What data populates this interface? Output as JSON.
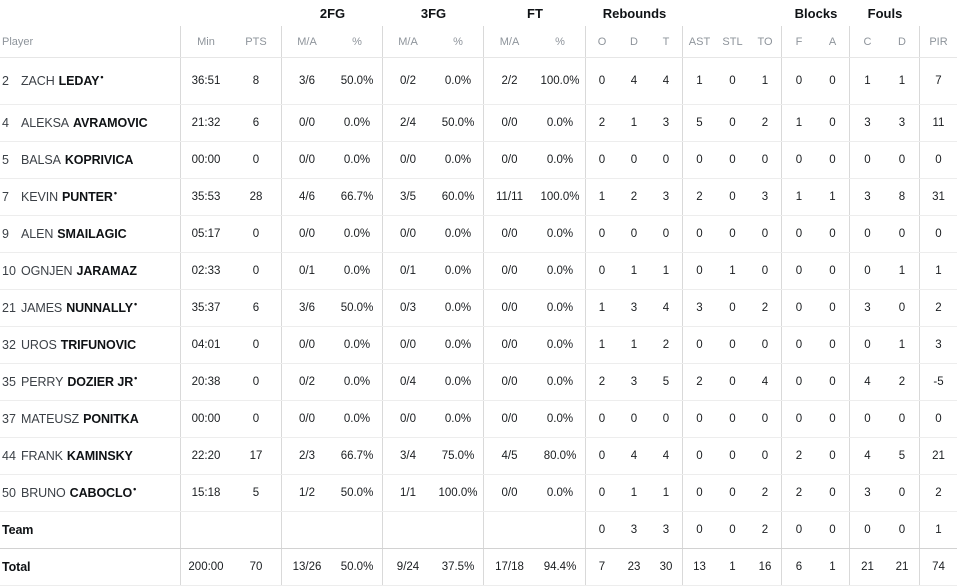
{
  "table": {
    "starter_mark": "•",
    "group_headers": [
      {
        "label": "2FG"
      },
      {
        "label": "3FG"
      },
      {
        "label": "FT"
      },
      {
        "label": "Rebounds"
      },
      {
        "label": "Blocks"
      },
      {
        "label": "Fouls"
      }
    ],
    "columns": [
      "Player",
      "Min",
      "PTS",
      "M/A",
      "%",
      "M/A",
      "%",
      "M/A",
      "%",
      "O",
      "D",
      "T",
      "AST",
      "STL",
      "TO",
      "F",
      "A",
      "C",
      "D",
      "PIR"
    ],
    "rows": [
      {
        "number": "2",
        "first": "ZACH",
        "last": "LEDAY",
        "starter": true,
        "stats": [
          "36:51",
          "8",
          "3/6",
          "50.0%",
          "0/2",
          "0.0%",
          "2/2",
          "100.0%",
          "0",
          "4",
          "4",
          "1",
          "0",
          "1",
          "0",
          "0",
          "1",
          "1",
          "7"
        ]
      },
      {
        "number": "4",
        "first": "ALEKSA",
        "last": "AVRAMOVIC",
        "starter": false,
        "stats": [
          "21:32",
          "6",
          "0/0",
          "0.0%",
          "2/4",
          "50.0%",
          "0/0",
          "0.0%",
          "2",
          "1",
          "3",
          "5",
          "0",
          "2",
          "1",
          "0",
          "3",
          "3",
          "11"
        ]
      },
      {
        "number": "5",
        "first": "BALSA",
        "last": "KOPRIVICA",
        "starter": false,
        "stats": [
          "00:00",
          "0",
          "0/0",
          "0.0%",
          "0/0",
          "0.0%",
          "0/0",
          "0.0%",
          "0",
          "0",
          "0",
          "0",
          "0",
          "0",
          "0",
          "0",
          "0",
          "0",
          "0"
        ]
      },
      {
        "number": "7",
        "first": "KEVIN",
        "last": "PUNTER",
        "starter": true,
        "stats": [
          "35:53",
          "28",
          "4/6",
          "66.7%",
          "3/5",
          "60.0%",
          "11/11",
          "100.0%",
          "1",
          "2",
          "3",
          "2",
          "0",
          "3",
          "1",
          "1",
          "3",
          "8",
          "31"
        ]
      },
      {
        "number": "9",
        "first": "ALEN",
        "last": "SMAILAGIC",
        "starter": false,
        "stats": [
          "05:17",
          "0",
          "0/0",
          "0.0%",
          "0/0",
          "0.0%",
          "0/0",
          "0.0%",
          "0",
          "0",
          "0",
          "0",
          "0",
          "0",
          "0",
          "0",
          "0",
          "0",
          "0"
        ]
      },
      {
        "number": "10",
        "first": "OGNJEN",
        "last": "JARAMAZ",
        "starter": false,
        "stats": [
          "02:33",
          "0",
          "0/1",
          "0.0%",
          "0/1",
          "0.0%",
          "0/0",
          "0.0%",
          "0",
          "1",
          "1",
          "0",
          "1",
          "0",
          "0",
          "0",
          "0",
          "1",
          "1"
        ]
      },
      {
        "number": "21",
        "first": "JAMES",
        "last": "NUNNALLY",
        "starter": true,
        "stats": [
          "35:37",
          "6",
          "3/6",
          "50.0%",
          "0/3",
          "0.0%",
          "0/0",
          "0.0%",
          "1",
          "3",
          "4",
          "3",
          "0",
          "2",
          "0",
          "0",
          "3",
          "0",
          "2"
        ]
      },
      {
        "number": "32",
        "first": "UROS",
        "last": "TRIFUNOVIC",
        "starter": false,
        "stats": [
          "04:01",
          "0",
          "0/0",
          "0.0%",
          "0/0",
          "0.0%",
          "0/0",
          "0.0%",
          "1",
          "1",
          "2",
          "0",
          "0",
          "0",
          "0",
          "0",
          "0",
          "1",
          "3"
        ]
      },
      {
        "number": "35",
        "first": "PERRY",
        "last": "DOZIER JR",
        "starter": true,
        "stats": [
          "20:38",
          "0",
          "0/2",
          "0.0%",
          "0/4",
          "0.0%",
          "0/0",
          "0.0%",
          "2",
          "3",
          "5",
          "2",
          "0",
          "4",
          "0",
          "0",
          "4",
          "2",
          "-5"
        ]
      },
      {
        "number": "37",
        "first": "MATEUSZ",
        "last": "PONITKA",
        "starter": false,
        "stats": [
          "00:00",
          "0",
          "0/0",
          "0.0%",
          "0/0",
          "0.0%",
          "0/0",
          "0.0%",
          "0",
          "0",
          "0",
          "0",
          "0",
          "0",
          "0",
          "0",
          "0",
          "0",
          "0"
        ]
      },
      {
        "number": "44",
        "first": "FRANK",
        "last": "KAMINSKY",
        "starter": false,
        "stats": [
          "22:20",
          "17",
          "2/3",
          "66.7%",
          "3/4",
          "75.0%",
          "4/5",
          "80.0%",
          "0",
          "4",
          "4",
          "0",
          "0",
          "0",
          "2",
          "0",
          "4",
          "5",
          "21"
        ]
      },
      {
        "number": "50",
        "first": "BRUNO",
        "last": "CABOCLO",
        "starter": true,
        "stats": [
          "15:18",
          "5",
          "1/2",
          "50.0%",
          "1/1",
          "100.0%",
          "0/0",
          "0.0%",
          "0",
          "1",
          "1",
          "0",
          "0",
          "2",
          "2",
          "0",
          "3",
          "0",
          "2"
        ]
      },
      {
        "type": "team",
        "label": "Team",
        "stats": [
          "",
          "",
          "",
          "",
          "",
          "",
          "",
          "",
          "0",
          "3",
          "3",
          "0",
          "0",
          "2",
          "0",
          "0",
          "0",
          "0",
          "1"
        ]
      },
      {
        "type": "total",
        "label": "Total",
        "stats": [
          "200:00",
          "70",
          "13/26",
          "50.0%",
          "9/24",
          "37.5%",
          "17/18",
          "94.4%",
          "7",
          "23",
          "30",
          "13",
          "1",
          "16",
          "6",
          "1",
          "21",
          "21",
          "74"
        ]
      }
    ]
  },
  "colors": {
    "header_text": "#0f1215",
    "muted_text": "#8e949b",
    "row_line": "#ededed",
    "column_line": "#d9d9d9",
    "background": "#ffffff"
  }
}
